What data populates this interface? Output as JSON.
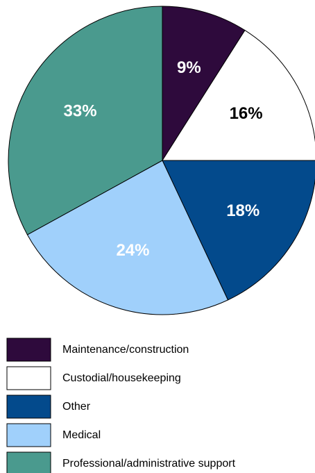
{
  "chart_data": {
    "type": "pie",
    "categories": [
      "Maintenance/construction",
      "Custodial/housekeeping",
      "Other",
      "Medical",
      "Professional/administrative support"
    ],
    "values": [
      9,
      16,
      18,
      24,
      33
    ],
    "value_labels": [
      "9%",
      "16%",
      "18%",
      "24%",
      "33%"
    ],
    "colors": [
      "#2e0a3c",
      "#ffffff",
      "#034a8c",
      "#a0d0fb",
      "#4a9a8e"
    ],
    "label_colors": [
      "#ffffff",
      "#000000",
      "#ffffff",
      "#ffffff",
      "#ffffff"
    ],
    "legend": "bottom"
  }
}
